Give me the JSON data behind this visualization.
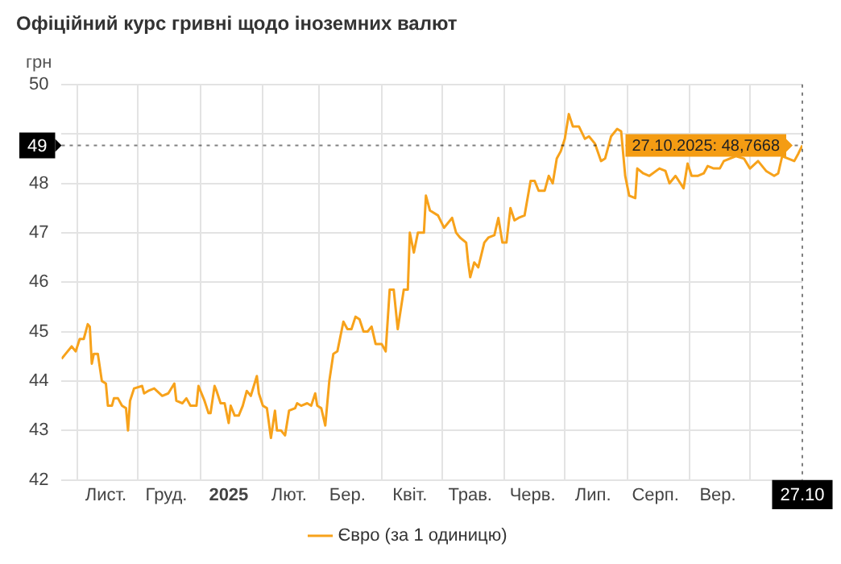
{
  "chart_data": {
    "type": "line",
    "title": "Офіційний курс гривні щодо іноземних валют",
    "ylabel": "грн",
    "xlim": [
      "2024-10-24",
      "2025-10-27"
    ],
    "xticks": [
      {
        "value": "2024-11-01",
        "label": null
      },
      {
        "value": "2024-11-15",
        "label": "Лист."
      },
      {
        "value": "2024-12-01",
        "label": null
      },
      {
        "value": "2024-12-15",
        "label": "Груд."
      },
      {
        "value": "2025-01-01",
        "label": null
      },
      {
        "value": "2025-01-15",
        "label": "2025"
      },
      {
        "value": "2025-02-01",
        "label": null
      },
      {
        "value": "2025-02-14",
        "label": "Лют."
      },
      {
        "value": "2025-03-01",
        "label": null
      },
      {
        "value": "2025-03-15",
        "label": "Бер."
      },
      {
        "value": "2025-04-01",
        "label": null
      },
      {
        "value": "2025-04-15",
        "label": "Квіт."
      },
      {
        "value": "2025-05-01",
        "label": null
      },
      {
        "value": "2025-05-15",
        "label": "Трав."
      },
      {
        "value": "2025-06-01",
        "label": null
      },
      {
        "value": "2025-06-15",
        "label": "Черв."
      },
      {
        "value": "2025-07-01",
        "label": null
      },
      {
        "value": "2025-07-15",
        "label": "Лип."
      },
      {
        "value": "2025-08-01",
        "label": null
      },
      {
        "value": "2025-08-15",
        "label": "Серп."
      },
      {
        "value": "2025-09-01",
        "label": null
      },
      {
        "value": "2025-09-15",
        "label": "Вер."
      },
      {
        "value": "2025-10-01",
        "label": null
      },
      {
        "value": "2025-10-27",
        "label": "27.10"
      }
    ],
    "ylim": [
      42,
      50
    ],
    "yticks": [
      42,
      43,
      44,
      45,
      46,
      47,
      48,
      {
        "value": 49,
        "label": null
      },
      50
    ],
    "grid": true,
    "legend": "bottom",
    "series": [
      {
        "name": "Євро (за 1 одиницю)",
        "color": "#f7a21b",
        "x": [
          "2024-10-24",
          "2024-10-26",
          "2024-10-29",
          "2024-10-31",
          "2024-11-02",
          "2024-11-04",
          "2024-11-06",
          "2024-11-07",
          "2024-11-08",
          "2024-11-09",
          "2024-11-11",
          "2024-11-13",
          "2024-11-15",
          "2024-11-16",
          "2024-11-18",
          "2024-11-19",
          "2024-11-21",
          "2024-11-23",
          "2024-11-25",
          "2024-11-26",
          "2024-11-27",
          "2024-11-29",
          "2024-12-03",
          "2024-12-04",
          "2024-12-06",
          "2024-12-09",
          "2024-12-13",
          "2024-12-16",
          "2024-12-19",
          "2024-12-20",
          "2024-12-23",
          "2024-12-25",
          "2024-12-27",
          "2024-12-30",
          "2024-12-31",
          "2025-01-03",
          "2025-01-05",
          "2025-01-06",
          "2025-01-08",
          "2025-01-09",
          "2025-01-11",
          "2025-01-13",
          "2025-01-15",
          "2025-01-16",
          "2025-01-18",
          "2025-01-20",
          "2025-01-22",
          "2025-01-24",
          "2025-01-26",
          "2025-01-29",
          "2025-01-30",
          "2025-02-01",
          "2025-02-03",
          "2025-02-05",
          "2025-02-07",
          "2025-02-08",
          "2025-02-10",
          "2025-02-12",
          "2025-02-14",
          "2025-02-17",
          "2025-02-18",
          "2025-02-20",
          "2025-02-23",
          "2025-02-25",
          "2025-02-27",
          "2025-02-28",
          "2025-03-02",
          "2025-03-04",
          "2025-03-06",
          "2025-03-08",
          "2025-03-10",
          "2025-03-13",
          "2025-03-15",
          "2025-03-17",
          "2025-03-19",
          "2025-03-21",
          "2025-03-23",
          "2025-03-25",
          "2025-03-27",
          "2025-03-29",
          "2025-04-01",
          "2025-04-03",
          "2025-04-05",
          "2025-04-07",
          "2025-04-09",
          "2025-04-12",
          "2025-04-14",
          "2025-04-15",
          "2025-04-17",
          "2025-04-19",
          "2025-04-22",
          "2025-04-23",
          "2025-04-25",
          "2025-04-29",
          "2025-05-02",
          "2025-05-06",
          "2025-05-08",
          "2025-05-10",
          "2025-05-13",
          "2025-05-14",
          "2025-05-15",
          "2025-05-17",
          "2025-05-19",
          "2025-05-22",
          "2025-05-24",
          "2025-05-27",
          "2025-05-29",
          "2025-05-31",
          "2025-06-02",
          "2025-06-04",
          "2025-06-06",
          "2025-06-08",
          "2025-06-11",
          "2025-06-14",
          "2025-06-16",
          "2025-06-18",
          "2025-06-21",
          "2025-06-23",
          "2025-06-25",
          "2025-06-27",
          "2025-06-29",
          "2025-07-01",
          "2025-07-03",
          "2025-07-05",
          "2025-07-08",
          "2025-07-11",
          "2025-07-13",
          "2025-07-16",
          "2025-07-19",
          "2025-07-21",
          "2025-07-24",
          "2025-07-27",
          "2025-07-29",
          "2025-07-30",
          "2025-07-31",
          "2025-08-02",
          "2025-08-05",
          "2025-08-06",
          "2025-08-09",
          "2025-08-12",
          "2025-08-17",
          "2025-08-20",
          "2025-08-22",
          "2025-08-25",
          "2025-08-29",
          "2025-08-31",
          "2025-09-02",
          "2025-09-05",
          "2025-09-08",
          "2025-09-10",
          "2025-09-13",
          "2025-09-16",
          "2025-09-18",
          "2025-09-24",
          "2025-09-28",
          "2025-10-01",
          "2025-10-05",
          "2025-10-09",
          "2025-10-13",
          "2025-10-15",
          "2025-10-17",
          "2025-10-20",
          "2025-10-23",
          "2025-10-25",
          "2025-10-27"
        ],
        "values": [
          44.45,
          44.55,
          44.7,
          44.6,
          44.85,
          44.85,
          45.15,
          45.1,
          44.35,
          44.55,
          44.55,
          44.0,
          43.95,
          43.5,
          43.5,
          43.65,
          43.65,
          43.5,
          43.45,
          43.0,
          43.6,
          43.85,
          43.9,
          43.75,
          43.8,
          43.85,
          43.7,
          43.75,
          43.95,
          43.6,
          43.55,
          43.65,
          43.5,
          43.5,
          43.9,
          43.6,
          43.35,
          43.35,
          43.9,
          43.8,
          43.55,
          43.55,
          43.15,
          43.5,
          43.3,
          43.3,
          43.5,
          43.8,
          43.7,
          44.1,
          43.75,
          43.5,
          43.45,
          42.85,
          43.4,
          43.0,
          43.0,
          42.9,
          43.4,
          43.45,
          43.55,
          43.5,
          43.55,
          43.5,
          43.75,
          43.5,
          43.45,
          43.1,
          44.0,
          44.55,
          44.6,
          45.2,
          45.05,
          45.05,
          45.3,
          45.25,
          45.0,
          45.0,
          45.1,
          44.75,
          44.75,
          44.6,
          45.85,
          45.85,
          45.05,
          45.85,
          45.85,
          47.0,
          46.6,
          47.0,
          47.0,
          47.75,
          47.45,
          47.35,
          47.1,
          47.3,
          47.0,
          46.9,
          46.8,
          46.4,
          46.1,
          46.4,
          46.3,
          46.8,
          46.9,
          46.95,
          47.3,
          46.8,
          46.8,
          47.5,
          47.25,
          47.3,
          47.35,
          48.05,
          48.05,
          47.85,
          47.85,
          48.15,
          48.0,
          48.5,
          48.65,
          48.9,
          49.4,
          49.15,
          49.15,
          48.9,
          48.95,
          48.8,
          48.45,
          48.5,
          48.95,
          49.1,
          49.05,
          48.6,
          48.15,
          47.75,
          47.7,
          48.3,
          48.2,
          48.15,
          48.3,
          48.25,
          48.0,
          48.15,
          47.9,
          48.4,
          48.15,
          48.15,
          48.2,
          48.35,
          48.3,
          48.3,
          48.45,
          48.55,
          48.5,
          48.3,
          48.45,
          48.25,
          48.15,
          48.2,
          48.55,
          48.5,
          48.45,
          48.6,
          48.7668
        ]
      }
    ],
    "ref_lines": [
      {
        "axis": "y",
        "value": 48.7668,
        "label": "49",
        "line_style": "dotted",
        "color": "#000000"
      },
      {
        "axis": "x",
        "value": "2025-10-27",
        "line_style": "dotted",
        "color": "#000000"
      }
    ],
    "annotations": [
      {
        "text": "27.10.2025: 48,7668",
        "x": "2025-10-27",
        "y": 48.7668
      }
    ]
  }
}
